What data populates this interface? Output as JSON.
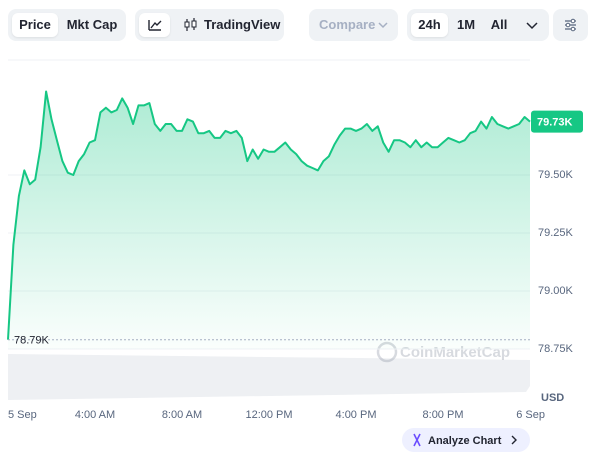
{
  "toolbar": {
    "tabs": [
      "Price",
      "Mkt Cap"
    ],
    "chart_button": "TradingView",
    "compare": "Compare",
    "ranges": [
      "24h",
      "1M",
      "All"
    ]
  },
  "chart_data": {
    "type": "line",
    "color": "#16c784",
    "x": [
      0,
      0.25,
      0.5,
      0.75,
      1,
      1.25,
      1.5,
      1.75,
      2,
      2.25,
      2.5,
      2.75,
      3,
      3.25,
      3.5,
      3.75,
      4,
      4.25,
      4.5,
      4.75,
      5,
      5.25,
      5.5,
      5.75,
      6,
      6.25,
      6.5,
      6.75,
      7,
      7.25,
      7.5,
      7.75,
      8,
      8.25,
      8.5,
      8.75,
      9,
      9.25,
      9.5,
      9.75,
      10,
      10.25,
      10.5,
      10.75,
      11,
      11.25,
      11.5,
      11.75,
      12,
      12.25,
      12.5,
      12.75,
      13,
      13.25,
      13.5,
      13.75,
      14,
      14.25,
      14.5,
      14.75,
      15,
      15.25,
      15.5,
      15.75,
      16,
      16.25,
      16.5,
      16.75,
      17,
      17.25,
      17.5,
      17.75,
      18,
      18.25,
      18.5,
      18.75,
      19,
      19.25,
      19.5,
      19.75,
      20,
      20.25,
      20.5,
      20.75,
      21,
      21.25,
      21.5,
      21.75,
      22,
      22.25,
      22.5,
      22.75,
      23,
      23.25,
      23.5,
      23.75,
      24
    ],
    "values": [
      78790,
      79200,
      79410,
      79520,
      79460,
      79480,
      79620,
      79860,
      79740,
      79650,
      79560,
      79510,
      79500,
      79560,
      79590,
      79640,
      79650,
      79770,
      79790,
      79770,
      79780,
      79830,
      79790,
      79720,
      79800,
      79800,
      79810,
      79720,
      79690,
      79720,
      79720,
      79690,
      79690,
      79740,
      79730,
      79680,
      79680,
      79690,
      79660,
      79660,
      79690,
      79680,
      79690,
      79660,
      79560,
      79610,
      79570,
      79610,
      79600,
      79600,
      79620,
      79640,
      79610,
      79590,
      79560,
      79540,
      79530,
      79520,
      79560,
      79580,
      79630,
      79670,
      79700,
      79700,
      79690,
      79700,
      79720,
      79690,
      79710,
      79640,
      79600,
      79650,
      79650,
      79640,
      79620,
      79650,
      79620,
      79640,
      79620,
      79620,
      79640,
      79660,
      79650,
      79640,
      79650,
      79680,
      79690,
      79730,
      79700,
      79750,
      79720,
      79710,
      79700,
      79710,
      79720,
      79750,
      79730
    ],
    "xlim": [
      0,
      24
    ],
    "xticks": [
      {
        "value": 0,
        "label": "5 Sep"
      },
      {
        "value": 4,
        "label": "4:00 AM"
      },
      {
        "value": 8,
        "label": "8:00 AM"
      },
      {
        "value": 12,
        "label": "12:00 PM"
      },
      {
        "value": 16,
        "label": "4:00 PM"
      },
      {
        "value": 20,
        "label": "8:00 PM"
      },
      {
        "value": 24,
        "label": "6 Sep"
      }
    ],
    "ylim": [
      78750,
      80000
    ],
    "yticks": [
      {
        "value": 78750,
        "label": "78.75K"
      },
      {
        "value": 79000,
        "label": "79.00K"
      },
      {
        "value": 79250,
        "label": "79.25K"
      },
      {
        "value": 79500,
        "label": "79.50K"
      }
    ],
    "grid": true,
    "last_price": {
      "value": 79730,
      "label": "79.73K"
    },
    "low": {
      "value": 78790,
      "label": "78.79K"
    },
    "currency": "USD",
    "watermark": "CoinMarketCap",
    "button": "Analyze Chart"
  }
}
